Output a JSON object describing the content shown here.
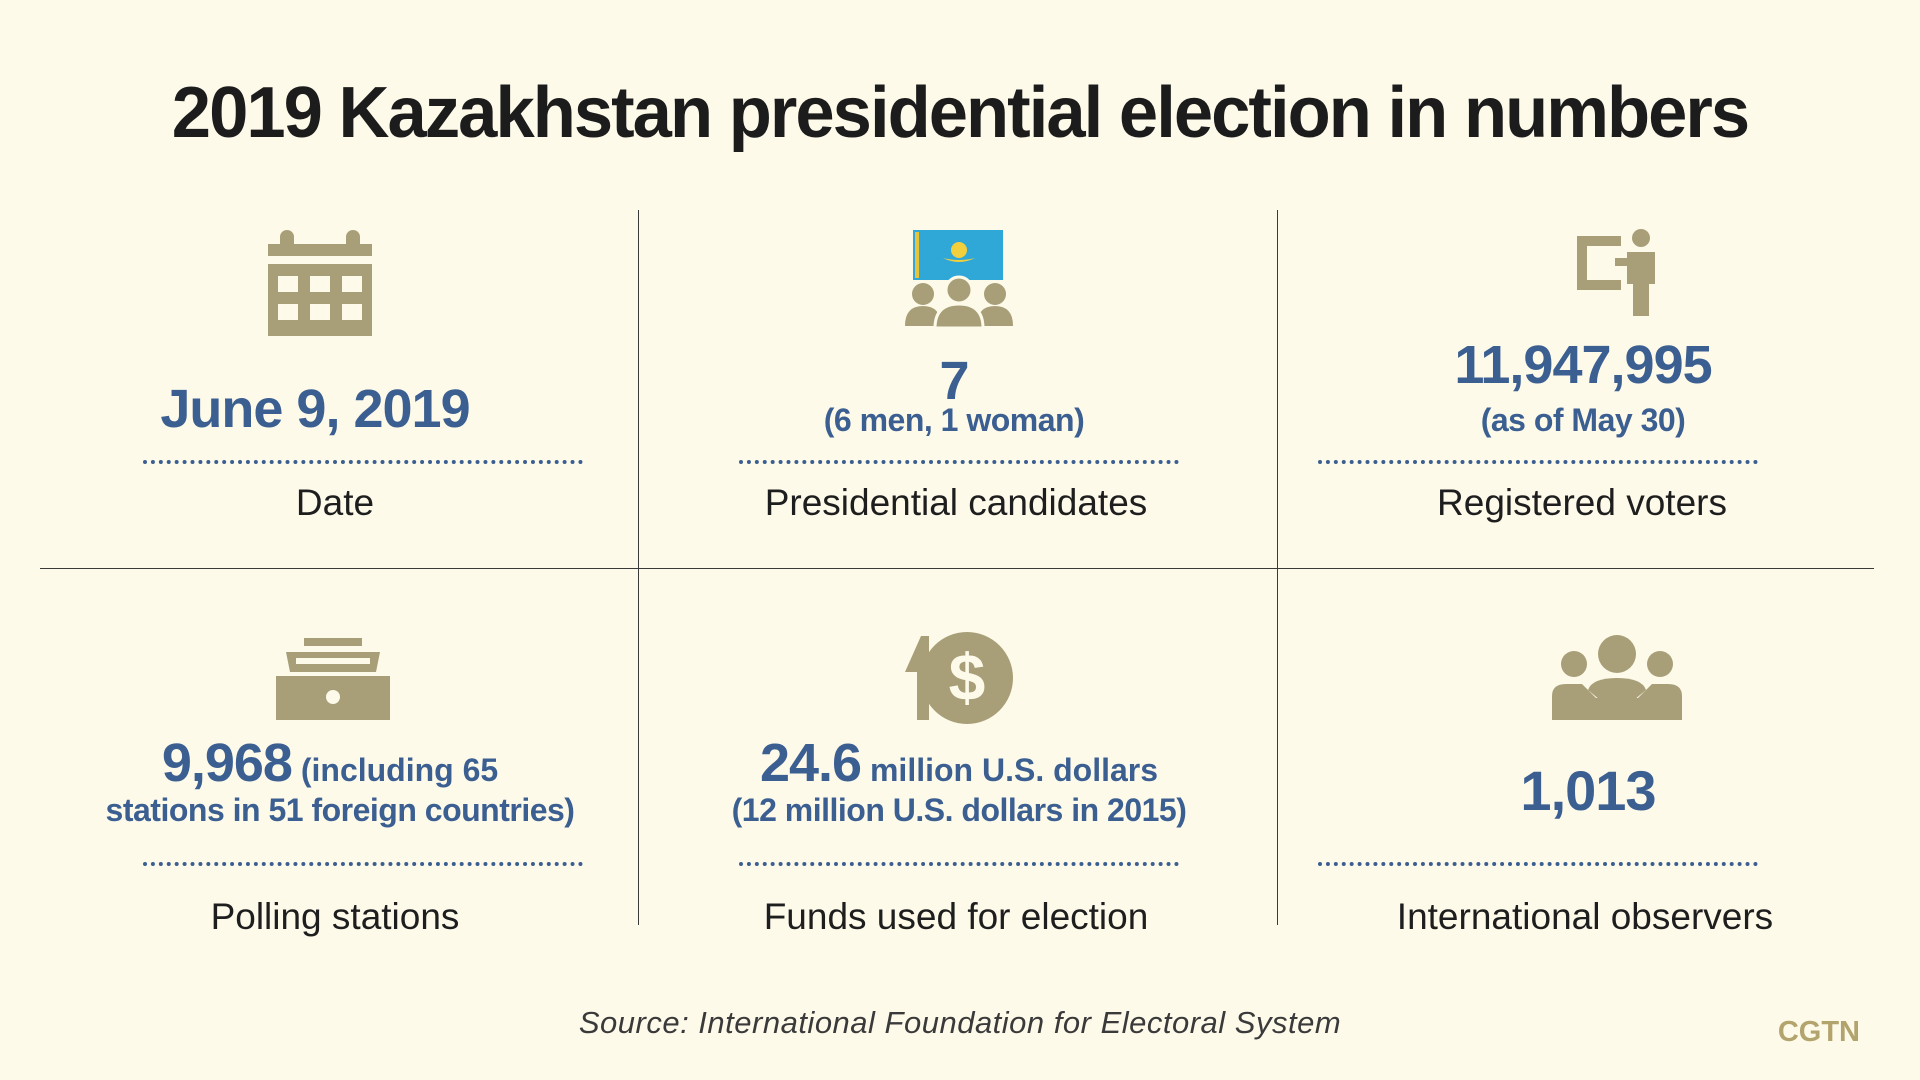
{
  "title": "2019 Kazakhstan presidential election in numbers",
  "cells": {
    "date": {
      "value": "June 9, 2019",
      "label": "Date",
      "icon": "calendar-icon"
    },
    "candidates": {
      "value": "7",
      "detail": "(6 men, 1 woman)",
      "label": "Presidential candidates",
      "icon": "candidates-flag-icon"
    },
    "voters": {
      "value": "11,947,995",
      "detail": "(as of May 30)",
      "label": "Registered voters",
      "icon": "voter-booth-icon"
    },
    "polling": {
      "value": "9,968",
      "detail_inline": " (including 65",
      "detail": "stations in 51 foreign countries)",
      "label": "Polling stations",
      "icon": "ballot-box-icon"
    },
    "funds": {
      "value": "24.6",
      "detail_inline": " million U.S. dollars",
      "detail": "(12 million U.S. dollars in 2015)",
      "label": "Funds used for election",
      "icon": "dollar-icon"
    },
    "observers": {
      "value": "1,013",
      "label": "International observers",
      "icon": "people-icon"
    }
  },
  "source": "Source: International Foundation for Electoral System",
  "brand": "CGTN",
  "colors": {
    "background": "#fdfaea",
    "accent": "#3c5f92",
    "icon": "#a89f78",
    "brand": "#b3a46e"
  }
}
